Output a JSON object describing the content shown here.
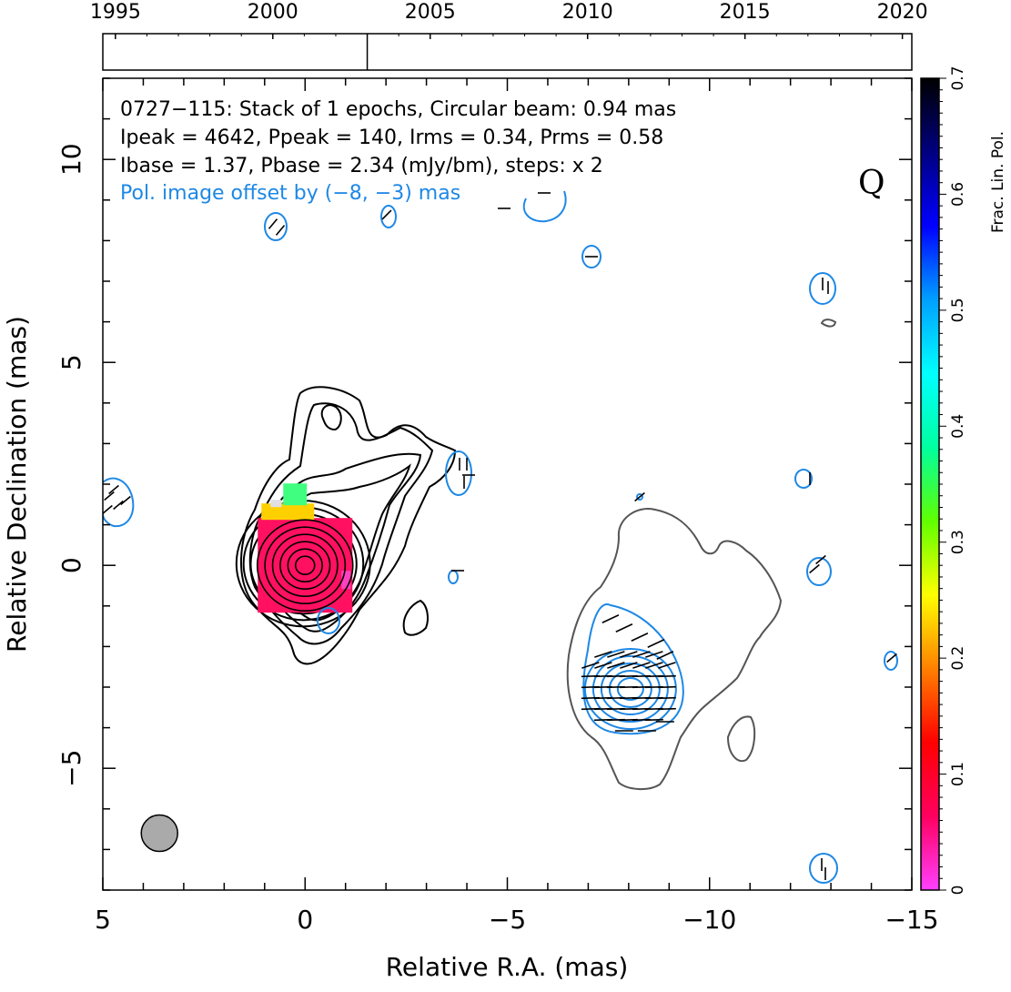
{
  "chart_data": {
    "type": "contour",
    "source_name": "0727−115",
    "info_lines": [
      "0727−115: Stack of 1 epochs, Circular beam: 0.94 mas",
      "Ipeak = 4642, Ppeak = 140, Irms = 0.34, Prms = 0.58",
      "Ibase = 1.37, Pbase = 2.34 (mJy/bm), steps: x 2"
    ],
    "offset_note": "Pol. image offset by (−8, −3) mas",
    "quality_grade": "Q",
    "xlabel": "Relative R.A. (mas)",
    "ylabel": "Relative Declination (mas)",
    "xlim": [
      5,
      -15
    ],
    "ylim": [
      -8,
      12
    ],
    "x_ticks": [
      5,
      0,
      -5,
      -10,
      -15
    ],
    "x_tick_labels": [
      "5",
      "0",
      "−5",
      "−10",
      "−15"
    ],
    "y_ticks": [
      -5,
      0,
      5,
      10
    ],
    "y_tick_labels": [
      "−5",
      "0",
      "5",
      "10"
    ],
    "beam": {
      "x": 3.6,
      "y": -6.6,
      "diameter_mas": 0.94,
      "color": "#aaaaaa"
    },
    "timeline": {
      "year_min": 1994.6,
      "year_max": 2020.3,
      "year_ticks": [
        1995,
        2000,
        2005,
        2010,
        2015,
        2020
      ],
      "year_labels": [
        "1995",
        "2000",
        "2005",
        "2010",
        "2015",
        "2020"
      ],
      "epochs": [
        2003.0
      ]
    },
    "colorbar": {
      "label": "Frac. Lin. Pol.",
      "min": 0,
      "max": 0.7,
      "ticks": [
        0,
        0.1,
        0.2,
        0.3,
        0.4,
        0.5,
        0.6,
        0.7
      ],
      "tick_labels": [
        "0",
        "0.1",
        "0.2",
        "0.3",
        "0.4",
        "0.5",
        "0.6",
        "0.7"
      ],
      "stops": [
        "#ff40ff",
        "#ff0060",
        "#ff0000",
        "#ff8000",
        "#ffff00",
        "#60ff00",
        "#00ffa0",
        "#00ffff",
        "#00a0ff",
        "#0000ff",
        "#000080",
        "#000000"
      ]
    },
    "stokes_i_core": {
      "x": 0,
      "y": 0,
      "levels": 9
    },
    "fpol_core": {
      "x": 0,
      "y": 0,
      "value": 0.03
    },
    "polarized_component": {
      "x": -8,
      "y": -3,
      "levels": 5
    },
    "colors": {
      "stokes_i": "#000000",
      "polarization": "#1e88e5",
      "offset_contour": "#555555",
      "offset_note": "#1e88e5"
    }
  }
}
